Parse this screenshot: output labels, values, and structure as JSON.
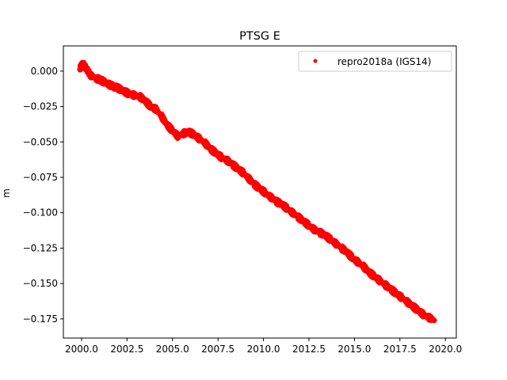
{
  "chart_data": {
    "type": "scatter",
    "title": "PTSG E",
    "xlabel": "",
    "ylabel": "m",
    "xlim": [
      1999.0,
      2020.6
    ],
    "ylim": [
      -0.1885,
      0.0178
    ],
    "xticks": [
      2000.0,
      2002.5,
      2005.0,
      2007.5,
      2010.0,
      2012.5,
      2015.0,
      2017.5,
      2020.0
    ],
    "xtick_labels": [
      "2000.0",
      "2002.5",
      "2005.0",
      "2007.5",
      "2010.0",
      "2012.5",
      "2015.0",
      "2017.5",
      "2020.0"
    ],
    "yticks": [
      0.0,
      -0.025,
      -0.05,
      -0.075,
      -0.1,
      -0.125,
      -0.15,
      -0.175
    ],
    "ytick_labels": [
      "0.000",
      "−0.025",
      "−0.050",
      "−0.075",
      "−0.100",
      "−0.125",
      "−0.150",
      "−0.175"
    ],
    "grid": false,
    "legend_position": "top-right",
    "series": [
      {
        "name": "repro2018a (IGS14)",
        "color": "#ff0000",
        "marker": "point",
        "points": [
          [
            1999.9,
            0.002
          ],
          [
            2000.0,
            0.004
          ],
          [
            2000.1,
            0.005
          ],
          [
            2000.3,
            0.001
          ],
          [
            2000.5,
            -0.003
          ],
          [
            2000.8,
            -0.005
          ],
          [
            2001.0,
            -0.006
          ],
          [
            2001.3,
            -0.008
          ],
          [
            2001.6,
            -0.01
          ],
          [
            2002.0,
            -0.012
          ],
          [
            2002.3,
            -0.014
          ],
          [
            2002.6,
            -0.016
          ],
          [
            2002.9,
            -0.017
          ],
          [
            2003.2,
            -0.018
          ],
          [
            2003.5,
            -0.021
          ],
          [
            2003.8,
            -0.025
          ],
          [
            2004.1,
            -0.027
          ],
          [
            2004.4,
            -0.032
          ],
          [
            2004.7,
            -0.038
          ],
          [
            2005.0,
            -0.042
          ],
          [
            2005.3,
            -0.046
          ],
          [
            2005.6,
            -0.044
          ],
          [
            2005.9,
            -0.043
          ],
          [
            2006.2,
            -0.045
          ],
          [
            2006.5,
            -0.048
          ],
          [
            2006.8,
            -0.051
          ],
          [
            2007.1,
            -0.055
          ],
          [
            2007.4,
            -0.058
          ],
          [
            2007.7,
            -0.061
          ],
          [
            2008.0,
            -0.063
          ],
          [
            2008.3,
            -0.066
          ],
          [
            2008.6,
            -0.069
          ],
          [
            2008.9,
            -0.072
          ],
          [
            2009.2,
            -0.076
          ],
          [
            2009.5,
            -0.08
          ],
          [
            2009.8,
            -0.083
          ],
          [
            2010.1,
            -0.086
          ],
          [
            2010.4,
            -0.089
          ],
          [
            2010.7,
            -0.092
          ],
          [
            2011.0,
            -0.094
          ],
          [
            2011.3,
            -0.097
          ],
          [
            2011.6,
            -0.1
          ],
          [
            2011.9,
            -0.103
          ],
          [
            2012.2,
            -0.106
          ],
          [
            2012.5,
            -0.109
          ],
          [
            2012.8,
            -0.112
          ],
          [
            2013.1,
            -0.114
          ],
          [
            2013.4,
            -0.116
          ],
          [
            2013.7,
            -0.119
          ],
          [
            2014.0,
            -0.122
          ],
          [
            2014.3,
            -0.125
          ],
          [
            2014.6,
            -0.128
          ],
          [
            2014.9,
            -0.132
          ],
          [
            2015.2,
            -0.135
          ],
          [
            2015.5,
            -0.138
          ],
          [
            2015.8,
            -0.142
          ],
          [
            2016.1,
            -0.145
          ],
          [
            2016.4,
            -0.148
          ],
          [
            2016.7,
            -0.151
          ],
          [
            2017.0,
            -0.154
          ],
          [
            2017.3,
            -0.157
          ],
          [
            2017.6,
            -0.16
          ],
          [
            2017.9,
            -0.163
          ],
          [
            2018.2,
            -0.166
          ],
          [
            2018.5,
            -0.169
          ],
          [
            2018.8,
            -0.172
          ],
          [
            2019.1,
            -0.174
          ],
          [
            2019.4,
            -0.176
          ]
        ]
      }
    ]
  }
}
